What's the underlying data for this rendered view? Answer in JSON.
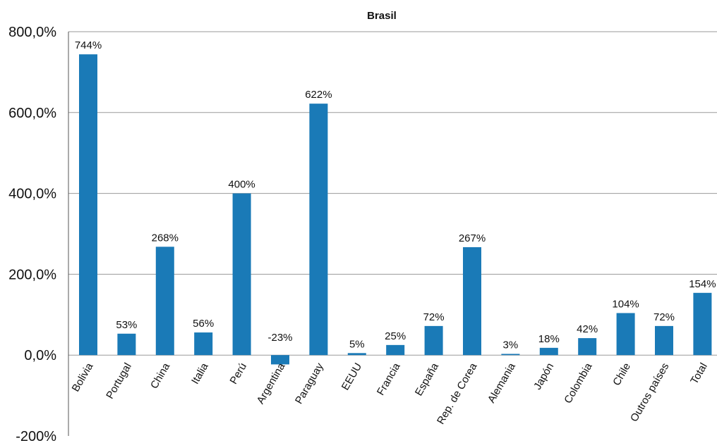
{
  "chart_data": {
    "type": "bar",
    "title": "Brasil",
    "xlabel": "",
    "ylabel": "",
    "ylim": [
      -200,
      800
    ],
    "grid": true,
    "legend": "none",
    "bar_color": "#1a7ab7",
    "y_ticks": [
      {
        "value": 800,
        "label": "800,0%"
      },
      {
        "value": 600,
        "label": "600,0%"
      },
      {
        "value": 400,
        "label": "400,0%"
      },
      {
        "value": 200,
        "label": "200,0%"
      },
      {
        "value": 0,
        "label": "0,0%"
      },
      {
        "value": -200,
        "label": "-200%"
      }
    ],
    "categories": [
      "Bolivia",
      "Portugal",
      "China",
      "Italia",
      "Perú",
      "Argentina",
      "Paraguay",
      "EEUU",
      "Francia",
      "España",
      "Rep. de Corea",
      "Alemania",
      "Japón",
      "Colombia",
      "Chile",
      "Outros países",
      "Total"
    ],
    "values": [
      744,
      53,
      268,
      56,
      400,
      -23,
      622,
      5,
      25,
      72,
      267,
      3,
      18,
      42,
      104,
      72,
      154
    ],
    "data_labels": [
      "744%",
      "53%",
      "268%",
      "56%",
      "400%",
      "-23%",
      "622%",
      "5%",
      "25%",
      "72%",
      "267%",
      "3%",
      "18%",
      "42%",
      "104%",
      "72%",
      "154%"
    ]
  }
}
